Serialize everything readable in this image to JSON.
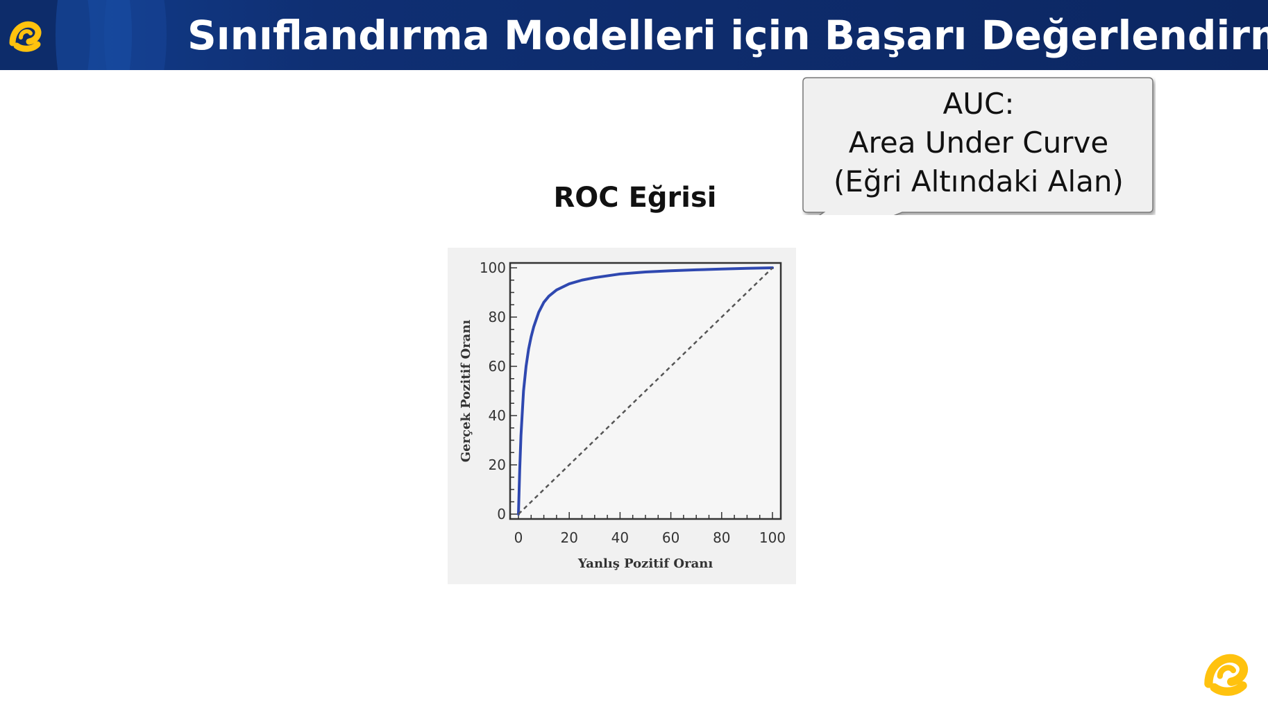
{
  "header": {
    "title": "Sınıflandırma Modelleri için Başarı Değerlendirme",
    "bg_color": "#0f2f73",
    "logo_icon": "turkcell-logo-icon"
  },
  "callout": {
    "line1": "AUC:",
    "line2": "Area Under Curve",
    "line3": "(Eğri Altındaki Alan)"
  },
  "footer": {
    "logo_icon": "turkcell-logo-icon"
  },
  "colors": {
    "accent": "#ffc20e",
    "curve": "#2f48b0",
    "diagonal": "#555555"
  },
  "chart_data": {
    "type": "line",
    "title": "ROC Eğrisi",
    "xlabel": "Yanlış Pozitif Oranı",
    "ylabel": "Gerçek Pozitif Oranı",
    "xlim": [
      0,
      100
    ],
    "ylim": [
      0,
      100
    ],
    "xticks": [
      0,
      20,
      40,
      60,
      80,
      100
    ],
    "yticks": [
      0,
      20,
      40,
      60,
      80,
      100
    ],
    "grid": false,
    "series": [
      {
        "style": "solid",
        "x": [
          0,
          0.5,
          1,
          2,
          3,
          4,
          5,
          6,
          8,
          10,
          12,
          15,
          20,
          25,
          30,
          40,
          50,
          60,
          70,
          80,
          90,
          100
        ],
        "y": [
          0,
          18,
          32,
          50,
          60,
          67,
          72,
          76,
          82,
          86,
          88.5,
          91,
          93.5,
          95,
          96,
          97.5,
          98.3,
          98.8,
          99.2,
          99.5,
          99.8,
          100
        ]
      },
      {
        "style": "dashed",
        "x": [
          0,
          100
        ],
        "y": [
          0,
          100
        ]
      }
    ]
  }
}
